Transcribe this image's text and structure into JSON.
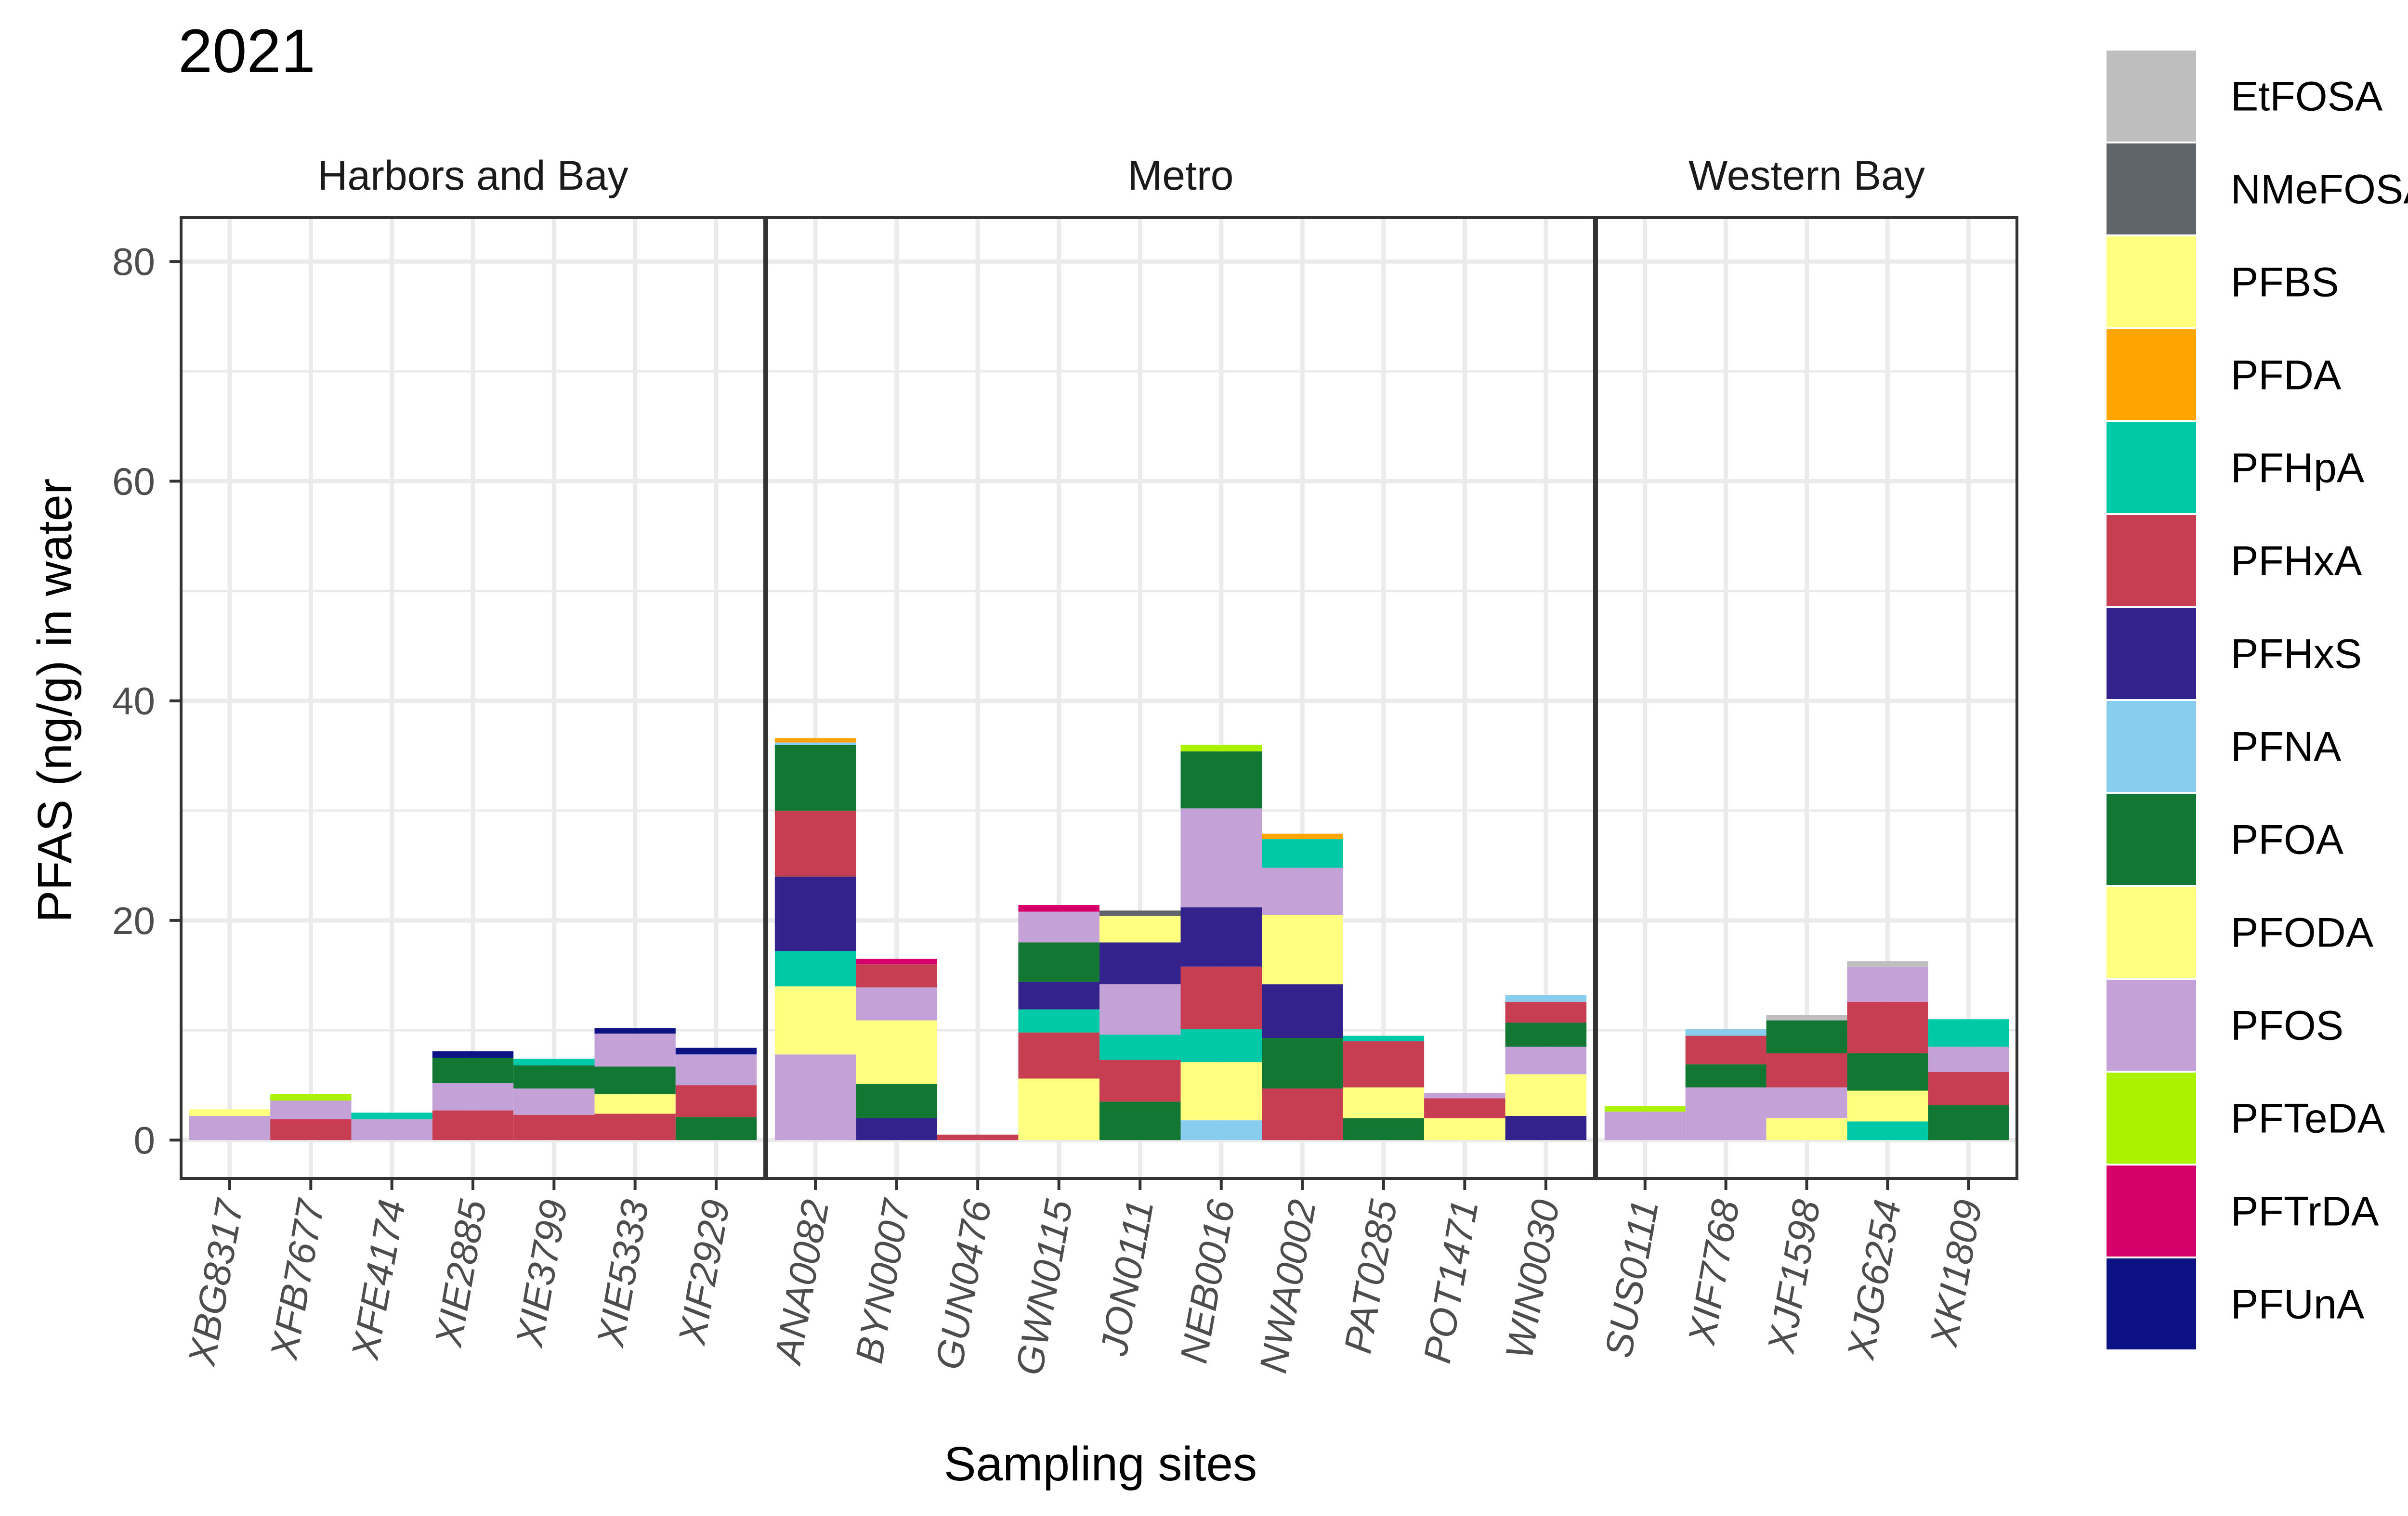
{
  "chart_data": {
    "type": "bar",
    "stacked": true,
    "title": "2021",
    "xlabel": "Sampling sites",
    "ylabel": "PFAS (ng/g) in water",
    "ylim": [
      -3.5,
      84
    ],
    "yticks": [
      0,
      20,
      40,
      60,
      80
    ],
    "grid": true,
    "legend_position": "right",
    "colors": {
      "EtFOSA": "#bebebe",
      "NMeFOSA": "#5f6569",
      "PFBS": "#ffff80",
      "PFDA": "#ffa500",
      "PFHpA": "#00c9a7",
      "PFHxA": "#c73e52",
      "PFHxS": "#33228b",
      "PFNA": "#88ccee",
      "PFOA": "#117733",
      "PFODA": "#ffff80",
      "PFOS": "#c4a2d8",
      "PFTeDA": "#aaf200",
      "PFTrDA": "#d6006b",
      "PFUnA": "#0c1283"
    },
    "legend": [
      "EtFOSA",
      "NMeFOSA",
      "PFBS",
      "PFDA",
      "PFHpA",
      "PFHxA",
      "PFHxS",
      "PFNA",
      "PFOA",
      "PFODA",
      "PFOS",
      "PFTeDA",
      "PFTrDA",
      "PFUnA"
    ],
    "panels": [
      {
        "label": "Harbors and Bay",
        "sites": [
          {
            "name": "XBG8317",
            "stack": [
              [
                "PFOS",
                2.2
              ],
              [
                "PFBS",
                0.6
              ]
            ]
          },
          {
            "name": "XFB7677",
            "stack": [
              [
                "PFHxA",
                1.9
              ],
              [
                "PFOS",
                1.7
              ],
              [
                "PFTeDA",
                0.6
              ]
            ]
          },
          {
            "name": "XFE4174",
            "stack": [
              [
                "PFOS",
                1.9
              ],
              [
                "PFHpA",
                0.6
              ]
            ]
          },
          {
            "name": "XIE2885",
            "stack": [
              [
                "PFHxA",
                2.7
              ],
              [
                "PFOS",
                2.5
              ],
              [
                "PFOA",
                2.3
              ],
              [
                "PFUnA",
                0.6
              ]
            ]
          },
          {
            "name": "XIE3799",
            "stack": [
              [
                "PFHxA",
                2.3
              ],
              [
                "PFOS",
                2.4
              ],
              [
                "PFOA",
                2.1
              ],
              [
                "PFHpA",
                0.6
              ]
            ]
          },
          {
            "name": "XIE5333",
            "stack": [
              [
                "PFHxA",
                2.4
              ],
              [
                "PFBS",
                1.8
              ],
              [
                "PFOA",
                2.5
              ],
              [
                "PFOS",
                3.0
              ],
              [
                "PFUnA",
                0.5
              ]
            ]
          },
          {
            "name": "XIF2929",
            "stack": [
              [
                "PFOA",
                2.1
              ],
              [
                "PFHxA",
                2.9
              ],
              [
                "PFOS",
                2.8
              ],
              [
                "PFUnA",
                0.6
              ]
            ]
          }
        ]
      },
      {
        "label": "Metro",
        "sites": [
          {
            "name": "ANA0082",
            "stack": [
              [
                "PFOS",
                7.8
              ],
              [
                "PFBS",
                6.2
              ],
              [
                "PFHpA",
                3.2
              ],
              [
                "PFHxS",
                6.8
              ],
              [
                "PFHxA",
                6.0
              ],
              [
                "PFOA",
                6.0
              ],
              [
                "PFNA",
                0.2
              ],
              [
                "PFDA",
                0.4
              ]
            ]
          },
          {
            "name": "BYN0007",
            "stack": [
              [
                "PFHxS",
                2.0
              ],
              [
                "PFOA",
                3.1
              ],
              [
                "PFBS",
                5.8
              ],
              [
                "PFOS",
                3.0
              ],
              [
                "PFHxA",
                2.1
              ],
              [
                "PFTrDA",
                0.5
              ]
            ]
          },
          {
            "name": "GUN0476",
            "stack": [
              [
                "PFHxA",
                0.5
              ]
            ]
          },
          {
            "name": "GWN0115",
            "stack": [
              [
                "PFBS",
                5.6
              ],
              [
                "PFHxA",
                4.2
              ],
              [
                "PFHpA",
                2.1
              ],
              [
                "PFHxS",
                2.5
              ],
              [
                "PFOA",
                3.6
              ],
              [
                "PFOS",
                2.8
              ],
              [
                "PFTrDA",
                0.6
              ]
            ]
          },
          {
            "name": "JON0111",
            "stack": [
              [
                "PFOA",
                3.5
              ],
              [
                "PFHxA",
                3.8
              ],
              [
                "PFHpA",
                2.3
              ],
              [
                "PFOS",
                4.6
              ],
              [
                "PFHxS",
                3.8
              ],
              [
                "PFBS",
                2.4
              ],
              [
                "NMeFOSA",
                0.5
              ]
            ]
          },
          {
            "name": "NEB0016",
            "stack": [
              [
                "PFNA",
                1.8
              ],
              [
                "PFBS",
                5.3
              ],
              [
                "PFHpA",
                3.0
              ],
              [
                "PFHxA",
                5.7
              ],
              [
                "PFHxS",
                5.4
              ],
              [
                "PFOS",
                9.0
              ],
              [
                "PFOA",
                5.2
              ],
              [
                "PFTeDA",
                0.6
              ]
            ]
          },
          {
            "name": "NWA0002",
            "stack": [
              [
                "PFHxA",
                4.7
              ],
              [
                "PFOA",
                4.6
              ],
              [
                "PFHxS",
                4.9
              ],
              [
                "PFBS",
                6.3
              ],
              [
                "PFOS",
                4.3
              ],
              [
                "PFHpA",
                2.6
              ],
              [
                "PFDA",
                0.5
              ]
            ]
          },
          {
            "name": "PAT0285",
            "stack": [
              [
                "PFOA",
                2.0
              ],
              [
                "PFBS",
                2.8
              ],
              [
                "PFHxA",
                4.2
              ],
              [
                "PFHpA",
                0.5
              ]
            ]
          },
          {
            "name": "POT1471",
            "stack": [
              [
                "PFBS",
                2.0
              ],
              [
                "PFHxA",
                1.8
              ],
              [
                "PFOS",
                0.5
              ]
            ]
          },
          {
            "name": "WIN0030",
            "stack": [
              [
                "PFHxS",
                2.2
              ],
              [
                "PFBS",
                3.8
              ],
              [
                "PFOS",
                2.5
              ],
              [
                "PFOA",
                2.2
              ],
              [
                "PFHxA",
                1.9
              ],
              [
                "PFNA",
                0.6
              ]
            ]
          }
        ]
      },
      {
        "label": "Western Bay",
        "sites": [
          {
            "name": "SUS0111",
            "stack": [
              [
                "PFOS",
                2.6
              ],
              [
                "PFTeDA",
                0.5
              ]
            ]
          },
          {
            "name": "XIF7768",
            "stack": [
              [
                "PFOS",
                4.8
              ],
              [
                "PFOA",
                2.1
              ],
              [
                "PFHxA",
                2.6
              ],
              [
                "PFNA",
                0.6
              ]
            ]
          },
          {
            "name": "XJF1598",
            "stack": [
              [
                "PFBS",
                2.0
              ],
              [
                "PFOS",
                2.8
              ],
              [
                "PFHxA",
                3.1
              ],
              [
                "PFOA",
                3.0
              ],
              [
                "EtFOSA",
                0.5
              ]
            ]
          },
          {
            "name": "XJG6254",
            "stack": [
              [
                "PFHpA",
                1.7
              ],
              [
                "PFBS",
                2.8
              ],
              [
                "PFOA",
                3.4
              ],
              [
                "PFHxA",
                4.7
              ],
              [
                "PFOS",
                3.2
              ],
              [
                "EtFOSA",
                0.5
              ]
            ]
          },
          {
            "name": "XKI1809",
            "stack": [
              [
                "PFOA",
                3.2
              ],
              [
                "PFHxA",
                3.0
              ],
              [
                "PFOS",
                2.3
              ],
              [
                "PFHpA",
                2.5
              ]
            ]
          }
        ]
      }
    ]
  }
}
